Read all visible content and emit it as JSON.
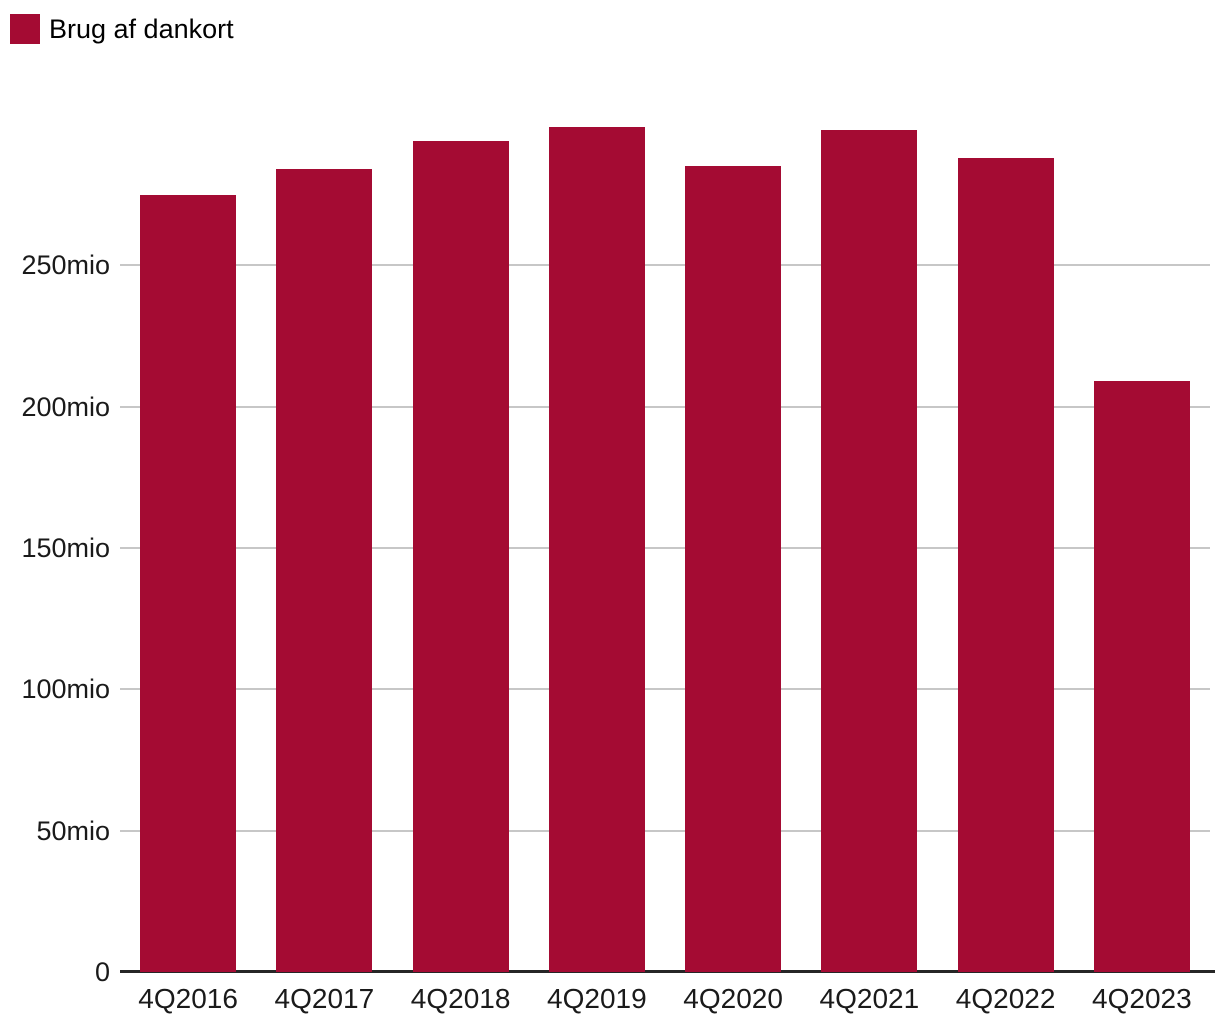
{
  "legend": {
    "label": "Brug af dankort",
    "color": "#A40B33"
  },
  "chart_data": {
    "type": "bar",
    "title": "",
    "xlabel": "",
    "ylabel": "",
    "unit": "mio",
    "categories": [
      "4Q2016",
      "4Q2017",
      "4Q2018",
      "4Q2019",
      "4Q2020",
      "4Q2021",
      "4Q2022",
      "4Q2023"
    ],
    "series": [
      {
        "name": "Brug af dankort",
        "values": [
          275,
          284,
          294,
          299,
          285,
          298,
          288,
          209
        ]
      }
    ],
    "yticks": [
      {
        "value": 0,
        "label": "0"
      },
      {
        "value": 50,
        "label": "50mio"
      },
      {
        "value": 100,
        "label": "100mio"
      },
      {
        "value": 150,
        "label": "150mio"
      },
      {
        "value": 200,
        "label": "200mio"
      },
      {
        "value": 250,
        "label": "250mio"
      }
    ],
    "ylim": [
      0,
      307
    ],
    "grid": "horizontal",
    "legend_position": "top-left",
    "bar_color": "#A40B33",
    "gridline_color": "#c7c7c7",
    "axis_line_color": "#262626"
  }
}
